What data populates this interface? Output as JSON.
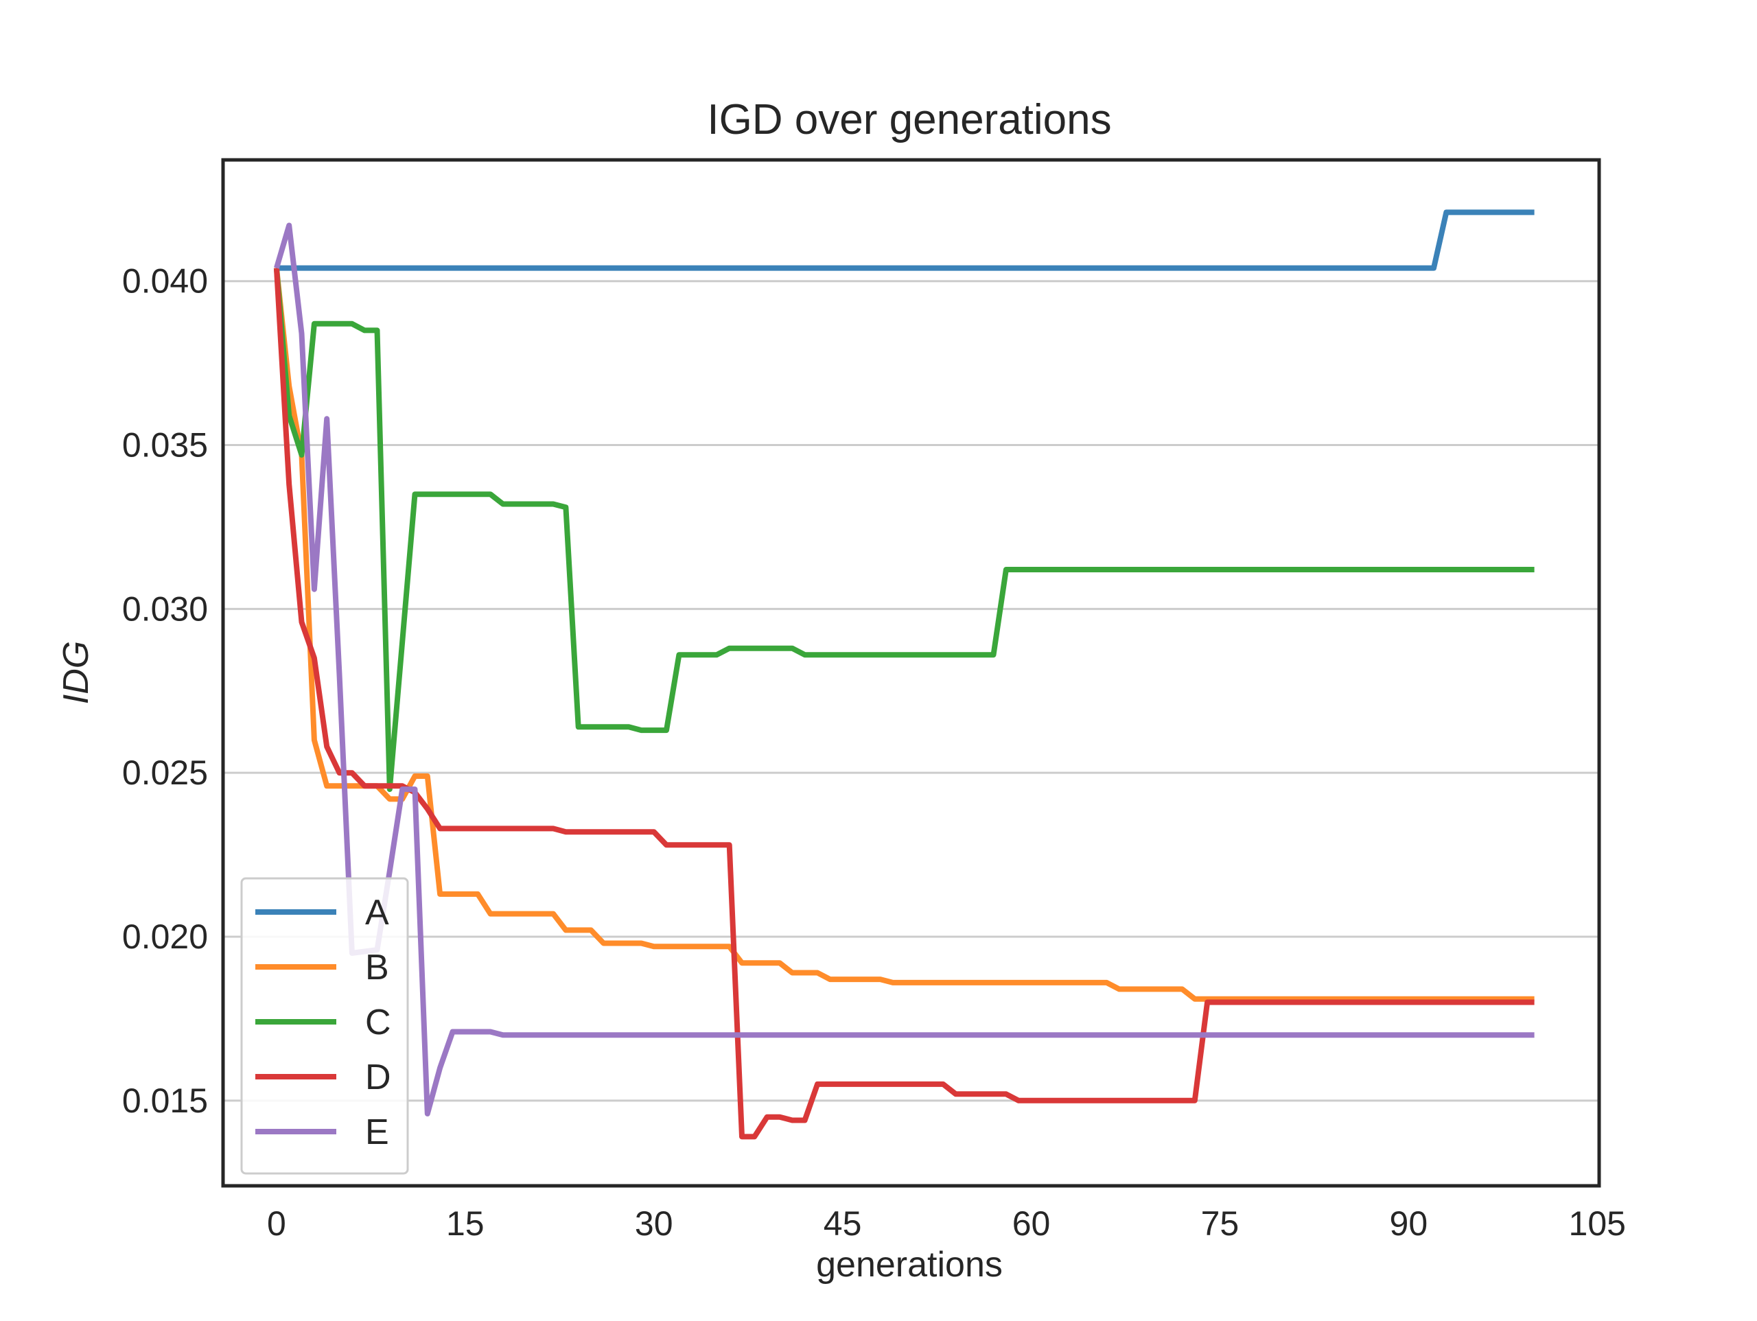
{
  "chart_data": {
    "type": "line",
    "title": "IGD over generations",
    "xlabel": "generations",
    "ylabel": "IDG",
    "xlim": [
      -4.25,
      105.15
    ],
    "ylim": [
      0.0124,
      0.0437
    ],
    "xticks": [
      0,
      15,
      30,
      45,
      60,
      75,
      90,
      105
    ],
    "yticks": [
      0.015,
      0.02,
      0.025,
      0.03,
      0.035,
      0.04
    ],
    "ytick_labels": [
      "0.015",
      "0.020",
      "0.025",
      "0.030",
      "0.035",
      "0.040"
    ],
    "grid": "horizontal",
    "legend_position": "lower-left",
    "series": [
      {
        "name": "A",
        "color": "#3b82b8",
        "points": [
          [
            0,
            0.0404
          ],
          [
            42,
            0.0404
          ],
          [
            92,
            0.0404
          ],
          [
            93,
            0.0421
          ],
          [
            100,
            0.0421
          ]
        ]
      },
      {
        "name": "B",
        "color": "#ff8c2a",
        "points": [
          [
            0,
            0.0404
          ],
          [
            1,
            0.0368
          ],
          [
            2,
            0.0347
          ],
          [
            3,
            0.026
          ],
          [
            4,
            0.0246
          ],
          [
            8,
            0.0246
          ],
          [
            9,
            0.0242
          ],
          [
            10,
            0.0242
          ],
          [
            11,
            0.0249
          ],
          [
            12,
            0.0249
          ],
          [
            13,
            0.0213
          ],
          [
            16,
            0.0213
          ],
          [
            17,
            0.0207
          ],
          [
            22,
            0.0207
          ],
          [
            23,
            0.0202
          ],
          [
            25,
            0.0202
          ],
          [
            26,
            0.0198
          ],
          [
            29,
            0.0198
          ],
          [
            30,
            0.0197
          ],
          [
            36,
            0.0197
          ],
          [
            37,
            0.0192
          ],
          [
            40,
            0.0192
          ],
          [
            41,
            0.0189
          ],
          [
            43,
            0.0189
          ],
          [
            44,
            0.0187
          ],
          [
            48,
            0.0187
          ],
          [
            49,
            0.0186
          ],
          [
            66,
            0.0186
          ],
          [
            67,
            0.0184
          ],
          [
            72,
            0.0184
          ],
          [
            73,
            0.0181
          ],
          [
            75,
            0.0181
          ],
          [
            76,
            0.0181
          ],
          [
            100,
            0.0181
          ]
        ]
      },
      {
        "name": "C",
        "color": "#3aa63a",
        "points": [
          [
            0,
            0.0404
          ],
          [
            1,
            0.0359
          ],
          [
            2,
            0.0347
          ],
          [
            3,
            0.0387
          ],
          [
            6,
            0.0387
          ],
          [
            7,
            0.0385
          ],
          [
            8,
            0.0385
          ],
          [
            9,
            0.0245
          ],
          [
            10,
            0.029
          ],
          [
            11,
            0.0335
          ],
          [
            17,
            0.0335
          ],
          [
            18,
            0.0332
          ],
          [
            22,
            0.0332
          ],
          [
            23,
            0.0331
          ],
          [
            24,
            0.0264
          ],
          [
            28,
            0.0264
          ],
          [
            29,
            0.0263
          ],
          [
            31,
            0.0263
          ],
          [
            32,
            0.0286
          ],
          [
            35,
            0.0286
          ],
          [
            36,
            0.0288
          ],
          [
            41,
            0.0288
          ],
          [
            42,
            0.0286
          ],
          [
            53,
            0.0286
          ],
          [
            57,
            0.0286
          ],
          [
            58,
            0.0312
          ],
          [
            100,
            0.0312
          ]
        ]
      },
      {
        "name": "D",
        "color": "#d93838",
        "points": [
          [
            0,
            0.0404
          ],
          [
            1,
            0.0338
          ],
          [
            2,
            0.0296
          ],
          [
            3,
            0.0285
          ],
          [
            4,
            0.0258
          ],
          [
            5,
            0.025
          ],
          [
            6,
            0.025
          ],
          [
            7,
            0.0246
          ],
          [
            10,
            0.0246
          ],
          [
            11,
            0.0244
          ],
          [
            12,
            0.0239
          ],
          [
            13,
            0.0233
          ],
          [
            22,
            0.0233
          ],
          [
            23,
            0.0232
          ],
          [
            30,
            0.0232
          ],
          [
            31,
            0.0228
          ],
          [
            36,
            0.0228
          ],
          [
            37,
            0.0139
          ],
          [
            38,
            0.0139
          ],
          [
            39,
            0.0145
          ],
          [
            40,
            0.0145
          ],
          [
            41,
            0.0144
          ],
          [
            42,
            0.0144
          ],
          [
            43,
            0.0155
          ],
          [
            53,
            0.0155
          ],
          [
            54,
            0.0152
          ],
          [
            58,
            0.0152
          ],
          [
            59,
            0.015
          ],
          [
            73,
            0.015
          ],
          [
            74,
            0.018
          ],
          [
            100,
            0.018
          ]
        ]
      },
      {
        "name": "E",
        "color": "#9b78c4",
        "points": [
          [
            0,
            0.0404
          ],
          [
            1,
            0.0417
          ],
          [
            2,
            0.0384
          ],
          [
            3,
            0.0306
          ],
          [
            4,
            0.0358
          ],
          [
            5,
            0.028
          ],
          [
            6,
            0.0195
          ],
          [
            8,
            0.0196
          ],
          [
            9,
            0.022
          ],
          [
            10,
            0.0245
          ],
          [
            11,
            0.0245
          ],
          [
            12,
            0.0146
          ],
          [
            13,
            0.016
          ],
          [
            14,
            0.0171
          ],
          [
            17,
            0.0171
          ],
          [
            18,
            0.017
          ],
          [
            22,
            0.017
          ],
          [
            23,
            0.017
          ],
          [
            100,
            0.017
          ]
        ]
      }
    ]
  }
}
